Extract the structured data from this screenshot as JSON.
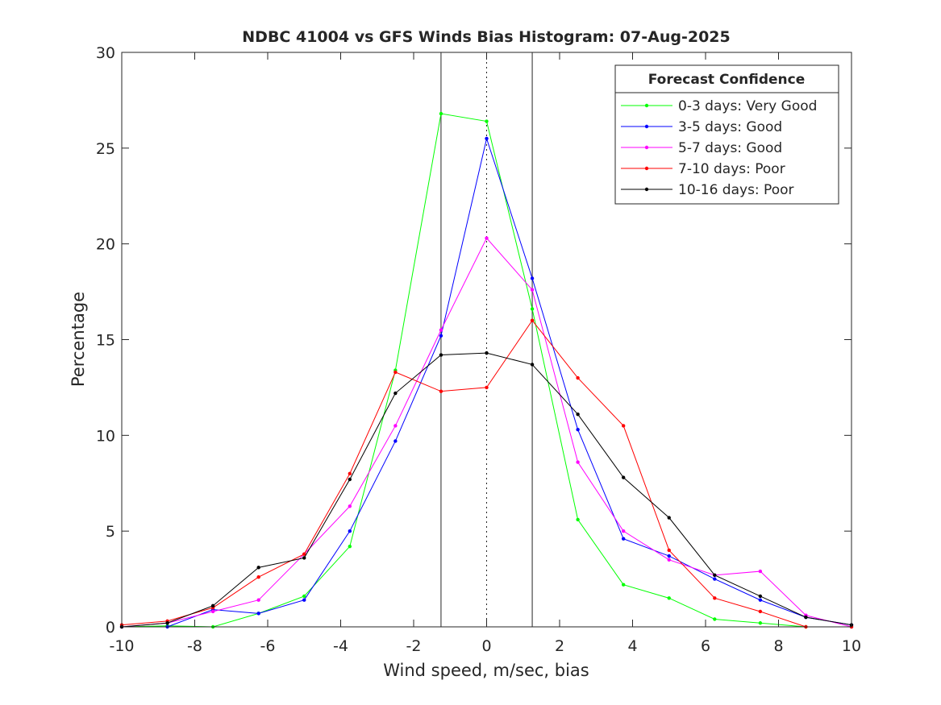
{
  "chart_data": {
    "type": "line",
    "title": "NDBC 41004 vs GFS Winds Bias Histogram: 07-Aug-2025",
    "xlabel": "Wind speed, m/sec, bias",
    "ylabel": "Percentage",
    "xlim": [
      -10,
      10
    ],
    "ylim": [
      0,
      30
    ],
    "xticks": [
      -10,
      -8,
      -6,
      -4,
      -2,
      0,
      2,
      4,
      6,
      8,
      10
    ],
    "yticks": [
      0,
      5,
      10,
      15,
      20,
      25,
      30
    ],
    "grid": false,
    "vertical_lines": [
      {
        "x": -1.25,
        "style": "solid"
      },
      {
        "x": 0,
        "style": "dotted"
      },
      {
        "x": 1.25,
        "style": "solid"
      }
    ],
    "legend": {
      "title": "Forecast Confidence",
      "position": "top-right"
    },
    "x": [
      -10,
      -8.75,
      -7.5,
      -6.25,
      -5,
      -3.75,
      -2.5,
      -1.25,
      0,
      1.25,
      2.5,
      3.75,
      5,
      6.25,
      7.5,
      8.75,
      10
    ],
    "series": [
      {
        "name": "0-3 days: Very Good",
        "color": "#00ff00",
        "values": [
          0,
          0.05,
          0,
          0.7,
          1.6,
          4.2,
          13.4,
          26.8,
          26.4,
          16.6,
          5.6,
          2.2,
          1.5,
          0.4,
          0.2,
          0,
          0
        ]
      },
      {
        "name": "3-5 days: Good",
        "color": "#0000ff",
        "values": [
          0,
          0,
          0.9,
          0.7,
          1.4,
          5.0,
          9.7,
          15.2,
          25.5,
          18.2,
          10.3,
          4.6,
          3.7,
          2.5,
          1.4,
          0.5,
          0.1
        ]
      },
      {
        "name": "5-7 days: Good",
        "color": "#ff00ff",
        "values": [
          0,
          0.2,
          0.8,
          1.4,
          3.8,
          6.3,
          10.5,
          15.5,
          20.3,
          17.6,
          8.6,
          5.0,
          3.5,
          2.7,
          2.9,
          0.6,
          0
        ]
      },
      {
        "name": "7-10 days: Poor",
        "color": "#ff0000",
        "values": [
          0.1,
          0.3,
          1.0,
          2.6,
          3.8,
          8.0,
          13.3,
          12.3,
          12.5,
          16.0,
          13.0,
          10.5,
          4.0,
          1.5,
          0.8,
          0,
          0
        ]
      },
      {
        "name": "10-16 days: Poor",
        "color": "#000000",
        "values": [
          0,
          0.2,
          1.1,
          3.1,
          3.6,
          7.7,
          12.2,
          14.2,
          14.3,
          13.7,
          11.1,
          7.8,
          5.7,
          2.7,
          1.6,
          0.5,
          0.1
        ]
      }
    ]
  }
}
